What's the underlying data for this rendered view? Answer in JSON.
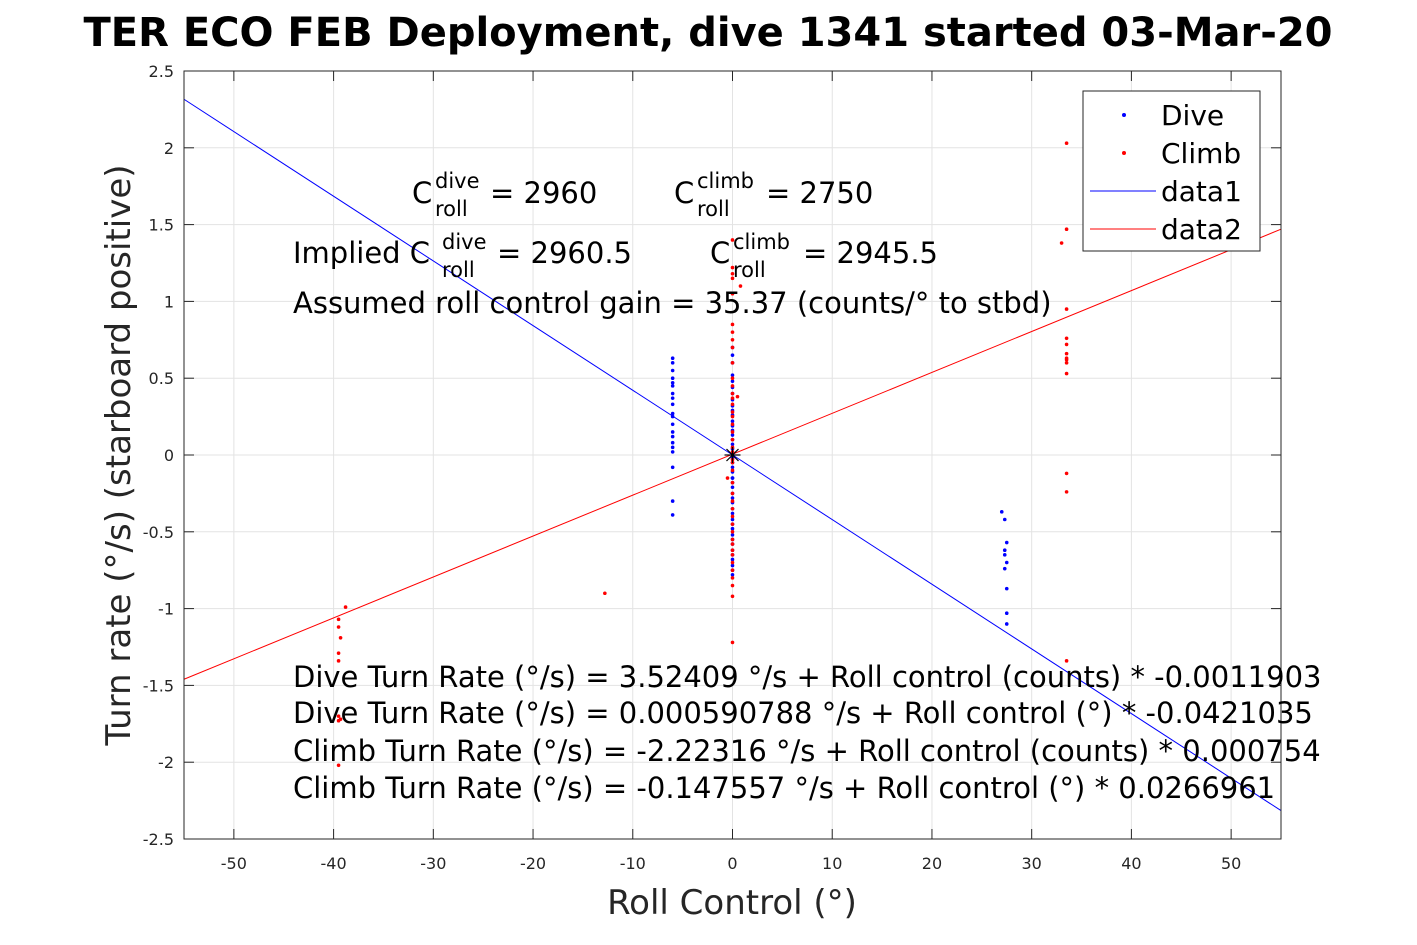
{
  "title": "TER ECO FEB Deployment, dive 1341 started 03-Mar-20",
  "chart_data": {
    "type": "scatter",
    "title": "TER ECO FEB Deployment, dive 1341 started 03-Mar-20",
    "xlabel": "Roll Control (°)",
    "ylabel": "Turn rate (°/s) (starboard positive)",
    "xlim": [
      -55,
      55
    ],
    "ylim": [
      -2.5,
      2.5
    ],
    "xticks": [
      -50,
      -40,
      -30,
      -20,
      -10,
      0,
      10,
      20,
      30,
      40,
      50
    ],
    "yticks": [
      2.5,
      2,
      1.5,
      1,
      0.5,
      0,
      -0.5,
      -1,
      -1.5,
      -2,
      -2.5
    ],
    "grid": true,
    "legend_position": "top-right",
    "colors": {
      "dive": "#0000ff",
      "climb": "#ff0000",
      "text": "#000000"
    },
    "series": [
      {
        "name": "Dive",
        "type": "scatter",
        "color": "#0000ff",
        "x": [
          -6,
          -6,
          -6,
          -6,
          -6,
          -6,
          -6,
          -6,
          -6,
          -6,
          -6,
          -6,
          -6,
          -6,
          -6,
          -6,
          -6,
          -6,
          -6,
          -6,
          0,
          0,
          0,
          0,
          0,
          0,
          0,
          0,
          0,
          0,
          0,
          0,
          0,
          0,
          0,
          0,
          0,
          0,
          0,
          0,
          0,
          0,
          0,
          0,
          0,
          0,
          0,
          0,
          0,
          0,
          0,
          0,
          0,
          0,
          0,
          0,
          0,
          0,
          0,
          0,
          0,
          0,
          0,
          0,
          27,
          27.3,
          27.5,
          27.3,
          27.3,
          27.5,
          27.3,
          27.5,
          27.5,
          27.5
        ],
        "y": [
          0.63,
          0.6,
          0.55,
          0.5,
          0.47,
          0.45,
          0.4,
          0.37,
          0.33,
          0.27,
          0.25,
          0.2,
          0.15,
          0.12,
          0.08,
          0.05,
          0.02,
          -0.08,
          -0.3,
          -0.39,
          0.7,
          0.65,
          0.6,
          0.52,
          0.48,
          0.44,
          0.4,
          0.36,
          0.32,
          0.29,
          0.26,
          0.22,
          0.19,
          0.16,
          0.13,
          0.1,
          0.07,
          0.04,
          0.01,
          -0.02,
          -0.05,
          -0.08,
          -0.11,
          -0.15,
          -0.18,
          -0.21,
          -0.25,
          -0.28,
          -0.31,
          -0.35,
          -0.38,
          -0.42,
          -0.45,
          -0.48,
          -0.52,
          -0.55,
          -0.58,
          -0.62,
          -0.65,
          -0.68,
          -0.72,
          -0.75,
          -0.78,
          -0.15,
          -0.37,
          -0.42,
          -0.57,
          -0.62,
          -0.65,
          -0.7,
          -0.74,
          -0.87,
          -1.03,
          -1.1
        ]
      },
      {
        "name": "Climb",
        "type": "scatter",
        "color": "#ff0000",
        "x": [
          0,
          0,
          0,
          0,
          0,
          0,
          0,
          0,
          0,
          0,
          0,
          0,
          0,
          0,
          0,
          0,
          0,
          0,
          0,
          0,
          0,
          0,
          0,
          0,
          0,
          0,
          0,
          0,
          0,
          0,
          0,
          0,
          0,
          0,
          0,
          0,
          0,
          0,
          0,
          0,
          0,
          0,
          0.5,
          0.8,
          -0.5,
          -39.5,
          -39.5,
          -38.8,
          -39.3,
          -39.5,
          -39.5,
          -39.5,
          -39.5,
          -39.3,
          -39.5,
          -12.8,
          33.5,
          33,
          33.5,
          33.5,
          33.5,
          33.5,
          33.5,
          33.5,
          33.5,
          33.5,
          33.5,
          33.5,
          33.5,
          33.5
        ],
        "y": [
          1.4,
          1.22,
          1.18,
          1.15,
          1.05,
          0.85,
          0.8,
          0.75,
          0.7,
          0.6,
          0.5,
          0.45,
          0.4,
          0.37,
          0.33,
          0.28,
          0.25,
          0.2,
          0.15,
          0.1,
          0.05,
          0.02,
          -0.05,
          -0.1,
          -0.18,
          -0.25,
          -0.3,
          -0.35,
          -0.4,
          -0.45,
          -0.5,
          -0.55,
          -0.58,
          -0.62,
          -0.65,
          -0.7,
          -0.75,
          -0.8,
          -0.85,
          -0.92,
          -1.22,
          -0.03,
          0.38,
          1.1,
          -0.15,
          -1.07,
          -1.12,
          -0.99,
          -1.19,
          -1.29,
          -1.34,
          -1.7,
          -1.73,
          -1.72,
          -2.02,
          -0.9,
          2.03,
          1.38,
          1.47,
          0.76,
          0.72,
          0.66,
          0.63,
          0.62,
          0.6,
          0.53,
          -0.12,
          -0.24,
          -1.34,
          0.95
        ]
      },
      {
        "name": "data1",
        "type": "line",
        "color": "#0000ff",
        "x": [
          -55,
          55
        ],
        "y": [
          2.316,
          -2.315
        ]
      },
      {
        "name": "data2",
        "type": "line",
        "color": "#ff0000",
        "x": [
          -55,
          55
        ],
        "y": [
          -1.46,
          1.47
        ]
      }
    ],
    "annotations": {
      "c_dive_label": "C",
      "c_dive_sup": "dive",
      "c_dive_sub": "roll",
      "c_dive_value": " = 2960",
      "c_climb_label": "C",
      "c_climb_sup": "climb",
      "c_climb_sub": "roll",
      "c_climb_value": " = 2750",
      "implied_prefix": "Implied C",
      "implied_dive_sup": "dive",
      "implied_dive_sub": "roll",
      "implied_dive_value": " = 2960.5",
      "implied_climb_label": "C",
      "implied_climb_sup": "climb",
      "implied_climb_sub": "roll",
      "implied_climb_value": " = 2945.5",
      "gain": "Assumed roll control gain = 35.37 (counts/° to stbd)",
      "eq1": "Dive Turn Rate (°/s) = 3.52409 °/s + Roll control (counts) * -0.0011903",
      "eq2": "Dive Turn Rate (°/s) = 0.000590788 °/s + Roll control (°) * -0.0421035",
      "eq3": "Climb Turn Rate (°/s) = -2.22316 °/s + Roll control (counts) * 0.000754",
      "eq4": "Climb Turn Rate (°/s) = -0.147557 °/s + Roll control (°) * 0.0266961"
    }
  }
}
